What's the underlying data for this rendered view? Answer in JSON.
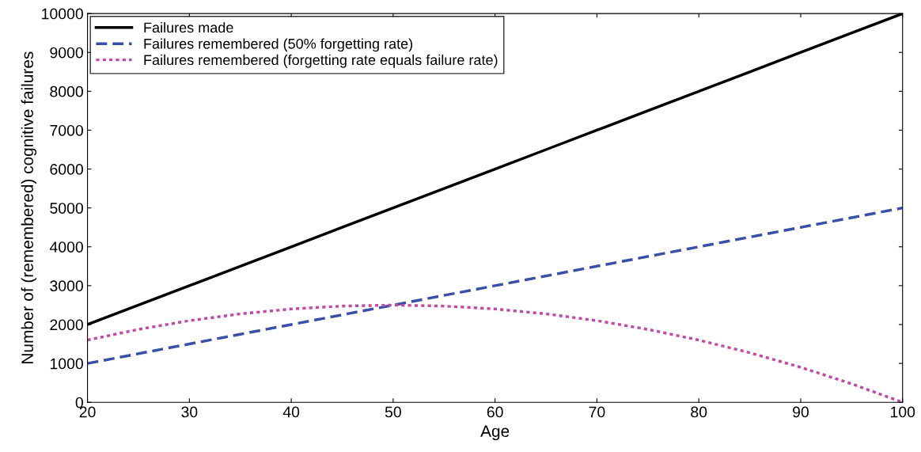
{
  "chart_data": {
    "type": "line",
    "xlabel": "Age",
    "ylabel": "Number of (remembered) cognitive failures",
    "x": [
      20,
      25,
      30,
      35,
      40,
      45,
      50,
      55,
      60,
      65,
      70,
      75,
      80,
      85,
      90,
      95,
      100
    ],
    "series": [
      {
        "name": "Failures made",
        "color": "#000000",
        "line_style": "solid",
        "values": [
          2000,
          2500,
          3000,
          3500,
          4000,
          4500,
          5000,
          5500,
          6000,
          6500,
          7000,
          7500,
          8000,
          8500,
          9000,
          9500,
          10000
        ]
      },
      {
        "name": "Failures remembered (50% forgetting rate)",
        "color": "#3a4fa8",
        "line_style": "dashed",
        "values": [
          1000,
          1250,
          1500,
          1750,
          2000,
          2250,
          2500,
          2750,
          3000,
          3250,
          3500,
          3750,
          4000,
          4250,
          4500,
          4750,
          5000
        ]
      },
      {
        "name": "Failures remembered (forgetting rate equals failure rate)",
        "color": "#c14aa6",
        "line_style": "dotted",
        "values": [
          1600,
          1875,
          2100,
          2275,
          2400,
          2475,
          2500,
          2475,
          2400,
          2275,
          2100,
          1875,
          1600,
          1275,
          900,
          475,
          0
        ]
      }
    ],
    "xlim": [
      20,
      100
    ],
    "xticks": [
      20,
      30,
      40,
      50,
      60,
      70,
      80,
      90,
      100
    ],
    "ylim": [
      0,
      10000
    ],
    "yticks": [
      0,
      1000,
      2000,
      3000,
      4000,
      5000,
      6000,
      7000,
      8000,
      9000,
      10000
    ],
    "grid": false,
    "legend": "top left",
    "marker": "none"
  }
}
